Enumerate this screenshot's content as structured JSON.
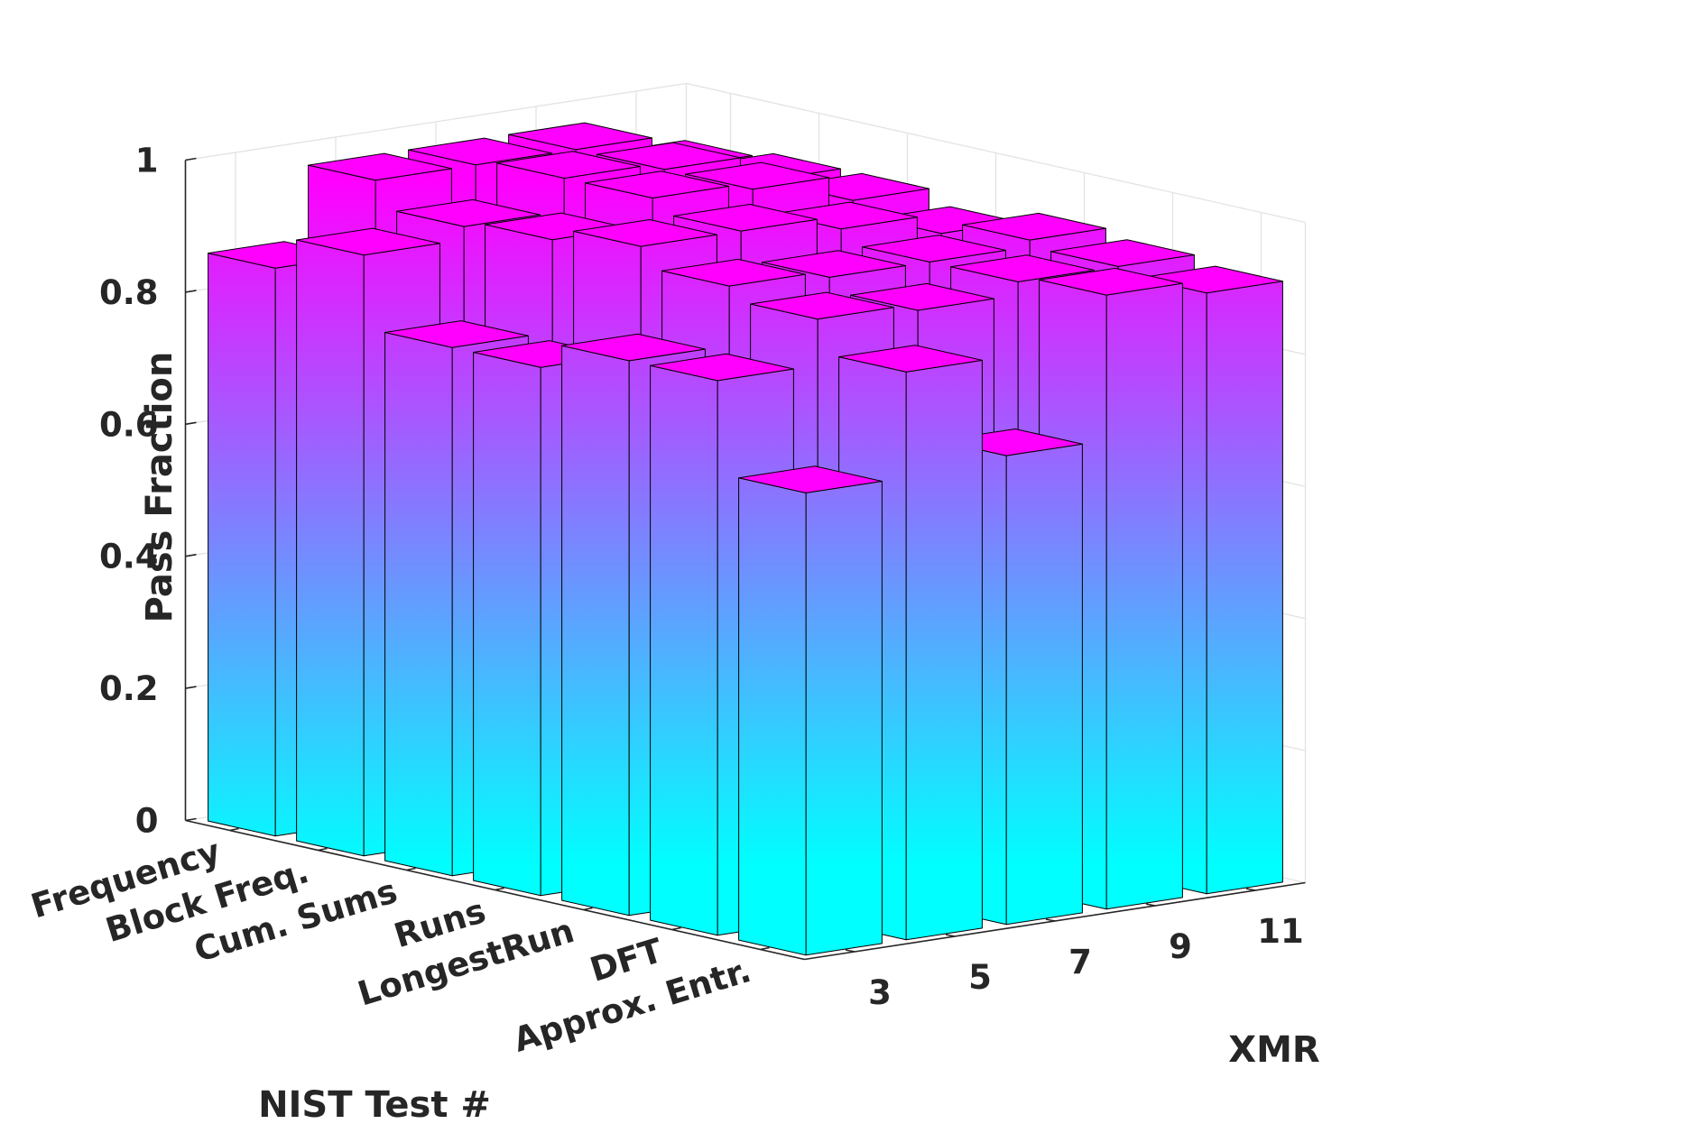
{
  "chart_data": {
    "type": "bar3d",
    "title": "",
    "xlabel": "XMR",
    "ylabel": "NIST Test #",
    "zlabel": "Pass Fraction",
    "x_categories": [
      "3",
      "5",
      "7",
      "9",
      "11"
    ],
    "y_categories": [
      "Frequency",
      "Block Freq.",
      "Cum. Sums",
      "Runs",
      "LongestRun",
      "DFT",
      "Approx. Entr."
    ],
    "z_ticks": [
      "0",
      "0.2",
      "0.4",
      "0.6",
      "0.8",
      "1"
    ],
    "zlim": [
      0,
      1
    ],
    "grid": true,
    "colormap": [
      "#00ffff",
      "#ff00ff"
    ],
    "series": [
      {
        "name": "3",
        "values": [
          0.86,
          0.91,
          0.8,
          0.8,
          0.84,
          0.84,
          0.7
        ]
      },
      {
        "name": "5",
        "values": [
          0.97,
          0.93,
          0.94,
          0.96,
          0.93,
          0.91,
          0.86
        ]
      },
      {
        "name": "7",
        "values": [
          0.97,
          0.98,
          0.98,
          0.96,
          0.92,
          0.9,
          0.71
        ]
      },
      {
        "name": "9",
        "values": [
          0.97,
          0.97,
          0.97,
          0.94,
          0.92,
          0.92,
          0.93
        ]
      },
      {
        "name": "11",
        "values": [
          0.92,
          0.93,
          0.93,
          0.91,
          0.93,
          0.92,
          0.91
        ]
      }
    ]
  }
}
